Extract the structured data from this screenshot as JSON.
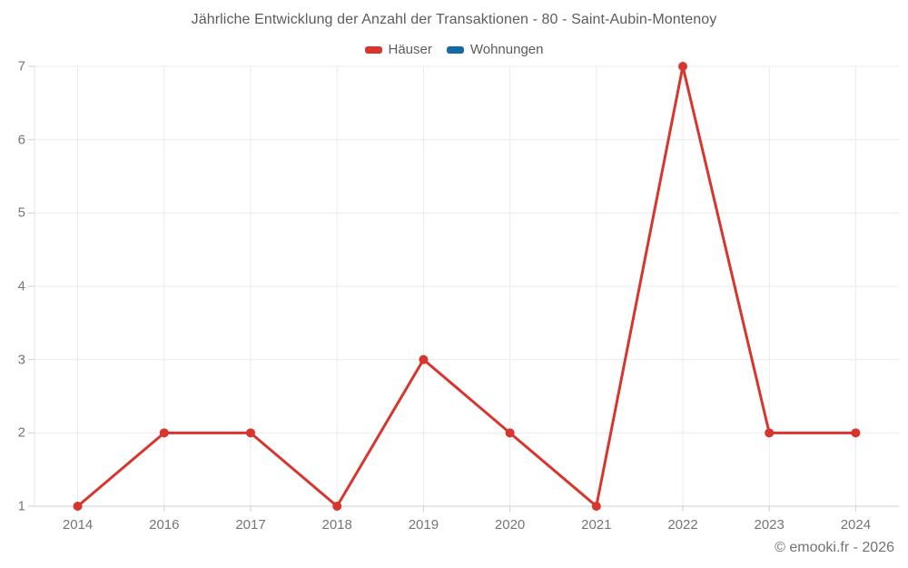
{
  "title": "Jährliche Entwicklung der Anzahl der Transaktionen - 80 - Saint-Aubin-Montenoy",
  "legend": {
    "items": [
      {
        "label": "Häuser",
        "color": "#d8352f"
      },
      {
        "label": "Wohnungen",
        "color": "#1269a4"
      }
    ]
  },
  "footer": {
    "copyright": "© emooki.fr - 2026"
  },
  "colors": {
    "series_red": "#d8352f",
    "series_blue": "#1269a4",
    "gridline": "#ebebeb",
    "axis_line": "#cfcfcf",
    "tick_mark": "#cfcfcf",
    "title_text": "#5c5c5c",
    "tick_text": "#767676"
  },
  "chart_data": {
    "type": "line",
    "title": "Jährliche Entwicklung der Anzahl der Transaktionen - 80 - Saint-Aubin-Montenoy",
    "categories": [
      "2014",
      "2016",
      "2017",
      "2018",
      "2019",
      "2020",
      "2021",
      "2022",
      "2023",
      "2024"
    ],
    "series": [
      {
        "name": "Häuser",
        "color": "#d8352f",
        "values": [
          1,
          2,
          2,
          1,
          3,
          2,
          1,
          7,
          2,
          2
        ]
      },
      {
        "name": "Wohnungen",
        "color": "#1269a4",
        "values": []
      }
    ],
    "xlabel": "",
    "ylabel": "",
    "ylim": [
      1,
      7
    ],
    "yticks": [
      1,
      2,
      3,
      4,
      5,
      6,
      7
    ],
    "grid": true,
    "legend_position": "top"
  }
}
